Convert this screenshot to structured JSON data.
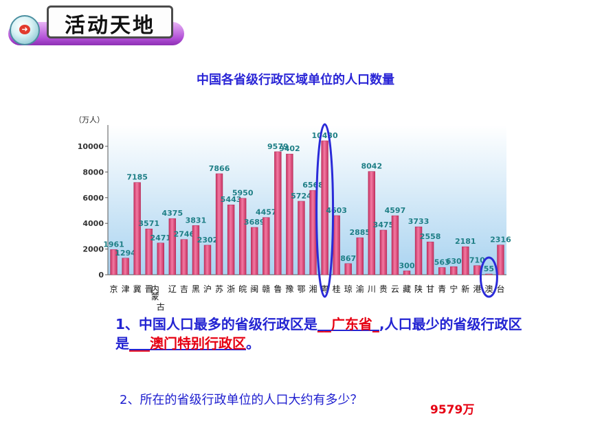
{
  "banner": {
    "title": "活动天地",
    "icon": "arrow-right-icon"
  },
  "chart_data": {
    "type": "bar",
    "title": "中国各省级行政区域单位的人口数量",
    "ylabel": "（万人）",
    "ylim": [
      0,
      11000
    ],
    "yticks": [
      0,
      2000,
      4000,
      6000,
      8000,
      10000
    ],
    "grid": false,
    "categories": [
      "京",
      "津",
      "冀",
      "晋",
      "内蒙古",
      "辽",
      "吉",
      "黑",
      "沪",
      "苏",
      "浙",
      "皖",
      "闽",
      "赣",
      "鲁",
      "豫",
      "鄂",
      "湘",
      "粤",
      "桂",
      "琼",
      "渝",
      "川",
      "贵",
      "云",
      "藏",
      "陕",
      "甘",
      "青",
      "宁",
      "新",
      "港",
      "澳",
      "台"
    ],
    "values": [
      1961,
      1294,
      7185,
      3571,
      2471,
      4375,
      2746,
      3831,
      2302,
      7866,
      5443,
      5950,
      3689,
      4457,
      9579,
      9402,
      5724,
      6568,
      10430,
      4603,
      867,
      2885,
      8042,
      3475,
      4597,
      300,
      3733,
      2558,
      563,
      630,
      2181,
      710,
      55,
      2316
    ],
    "bar_color": "#e75d8c",
    "label_color": "#1f7f86",
    "highlight": [
      "粤",
      "澳"
    ],
    "highlight_color": "#2a2ad8"
  },
  "questions": {
    "q1_prefix": "1、中国人口最多的省级行政区是",
    "q1_answer1": "广东省",
    "q1_mid": ",人口最少的省级行政区是",
    "q1_answer2": "澳门特别行政区",
    "q1_suffix": "。",
    "q2": "2、所在的省级行政单位的人口大约有多少？",
    "q2_answer": "9579万"
  }
}
